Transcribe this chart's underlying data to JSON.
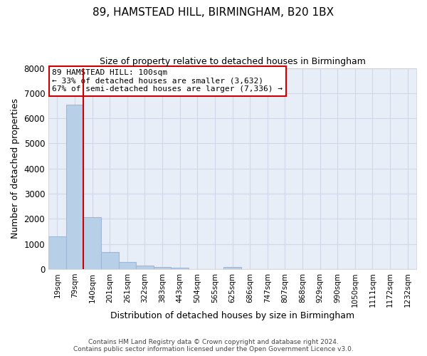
{
  "title1": "89, HAMSTEAD HILL, BIRMINGHAM, B20 1BX",
  "title2": "Size of property relative to detached houses in Birmingham",
  "xlabel": "Distribution of detached houses by size in Birmingham",
  "ylabel": "Number of detached properties",
  "categories": [
    "19sqm",
    "79sqm",
    "140sqm",
    "201sqm",
    "261sqm",
    "322sqm",
    "383sqm",
    "443sqm",
    "504sqm",
    "565sqm",
    "625sqm",
    "686sqm",
    "747sqm",
    "807sqm",
    "868sqm",
    "929sqm",
    "990sqm",
    "1050sqm",
    "1111sqm",
    "1172sqm",
    "1232sqm"
  ],
  "values": [
    1300,
    6550,
    2060,
    680,
    290,
    130,
    80,
    60,
    0,
    0,
    90,
    0,
    0,
    0,
    0,
    0,
    0,
    0,
    0,
    0,
    0
  ],
  "bar_color": "#b8cfe8",
  "bar_edgecolor": "#a0b8d8",
  "vline_color": "#cc0000",
  "annotation_text_line1": "89 HAMSTEAD HILL: 100sqm",
  "annotation_text_line2": "← 33% of detached houses are smaller (3,632)",
  "annotation_text_line3": "67% of semi-detached houses are larger (7,336) →",
  "annotation_box_color": "#ffffff",
  "annotation_box_edgecolor": "#cc0000",
  "ylim": [
    0,
    8000
  ],
  "yticks": [
    0,
    1000,
    2000,
    3000,
    4000,
    5000,
    6000,
    7000,
    8000
  ],
  "grid_color": "#d0d8e8",
  "bg_color": "#e8eef8",
  "footer1": "Contains HM Land Registry data © Crown copyright and database right 2024.",
  "footer2": "Contains public sector information licensed under the Open Government Licence v3.0."
}
